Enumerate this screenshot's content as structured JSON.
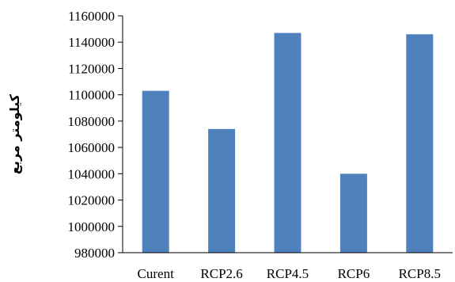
{
  "chart_data": {
    "type": "bar",
    "title": "",
    "xlabel": "",
    "ylabel": "کیلومتر مربع",
    "categories": [
      "Curent",
      "RCP2.6",
      "RCP4.5",
      "RCP6",
      "RCP8.5"
    ],
    "values": [
      1103000,
      1074000,
      1147000,
      1040000,
      1146000
    ],
    "ylim": [
      980000,
      1160000
    ],
    "yticks": [
      980000,
      1000000,
      1020000,
      1040000,
      1060000,
      1080000,
      1100000,
      1120000,
      1140000,
      1160000
    ],
    "ytick_labels": [
      "980000",
      "1000000",
      "1020000",
      "1040000",
      "1060000",
      "1080000",
      "1100000",
      "1120000",
      "1140000",
      "1160000"
    ],
    "grid": false,
    "legend": "none",
    "colors": {
      "bar": "#4f81bd",
      "axis": "#000000"
    }
  }
}
